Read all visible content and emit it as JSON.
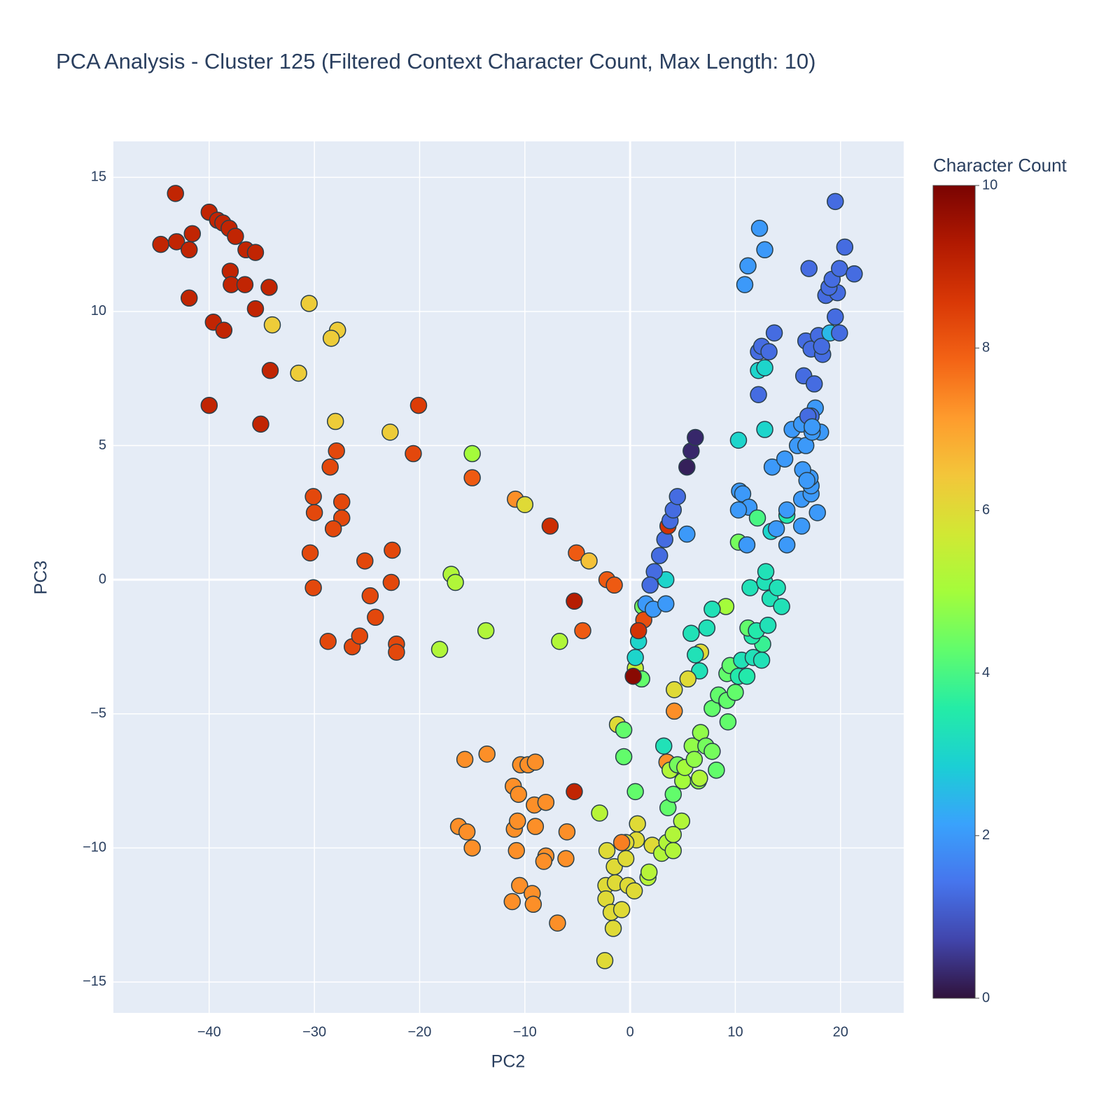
{
  "chart_data": {
    "type": "scatter",
    "title": "PCA Analysis - Cluster 125 (Filtered Context Character Count, Max Length: 10)",
    "x_label": "PC2",
    "y_label": "PC3",
    "xlim": [
      -49.1,
      26.0
    ],
    "ylim": [
      -16.15,
      16.34
    ],
    "xticks": [
      {
        "value": -40,
        "label": "−40"
      },
      {
        "value": -30,
        "label": "−30"
      },
      {
        "value": -20,
        "label": "−20"
      },
      {
        "value": -10,
        "label": "−10"
      },
      0,
      10,
      20
    ],
    "yticks": [
      {
        "value": -15,
        "label": "−15"
      },
      {
        "value": -10,
        "label": "−10"
      },
      {
        "value": -5,
        "label": "−5"
      },
      0,
      5,
      10,
      15
    ],
    "grid": true,
    "background": "#e5ecf6",
    "marker_line_color": "#2a3f4a",
    "colorbar": {
      "title": "Character Count",
      "range": [
        0,
        10
      ],
      "ticks": [
        0,
        2,
        4,
        6,
        8,
        10
      ],
      "colorscale": "Turbo"
    },
    "series": [
      {
        "x": [
          -44.6,
          -43.2,
          -43.1,
          -41.9,
          -41.6,
          -41.9,
          -40,
          -39.2,
          -38.7,
          -38.1,
          -37.5,
          -36.5,
          -35.6,
          -38,
          -37.9,
          -36.6,
          -34.3,
          -35.6,
          -39.6,
          -38.6,
          -34.2,
          -40,
          -35.1,
          -34,
          -30.5,
          -27.8,
          -28.4,
          -31.5,
          -28,
          -22.8,
          -20.1,
          -20.6,
          -27.9,
          -28.5,
          -30.1,
          -27.4,
          -30,
          -27.4,
          -28.2,
          -30.4,
          -25.2,
          -22.6,
          -30.1,
          -22.7,
          -24.7,
          -24.2,
          -28.7,
          -26.4,
          -25.7,
          -22.2,
          -22.2,
          -15,
          -15,
          -10.9,
          -10,
          -7.6,
          -5.1,
          -3.9,
          -2.2,
          -1.5,
          -5.3,
          -4.5,
          -6.7,
          -17,
          -16.6,
          -13.7,
          -18.1,
          -15.7,
          -13.6,
          -10.4,
          -9.7,
          -9,
          -11.1,
          -10.6,
          -9.1,
          -8,
          -5.3,
          -16.3,
          -15.5,
          -15,
          -11,
          -10.7,
          -9,
          -6,
          -10.8,
          -8,
          -8.2,
          -6.1,
          -10.5,
          -9.3,
          -11.2,
          -9.2,
          -6.9,
          -2.9,
          -1.2,
          -2.2,
          -1.5,
          -0.4,
          0.6,
          0.7,
          -0.4,
          -0.8,
          2.1,
          -2.3,
          -1.4,
          -0.2,
          0.4,
          -2.3,
          -1.8,
          -0.8,
          -1.6,
          -2.4,
          1.7,
          1.8,
          -0.6,
          -0.6,
          0.5,
          0.5,
          1.1,
          3.6,
          4.1,
          4.9,
          3,
          3.5,
          4.1,
          4.1,
          3.2,
          3.5,
          4.2,
          4.2,
          3.8,
          4.5,
          5,
          5.2,
          5.9,
          6.1,
          6.7,
          6.5,
          6.6,
          7.2,
          7.8,
          8.2,
          7.8,
          8.4,
          9.2,
          9.3,
          10,
          9.2,
          9.5,
          10.3,
          11.1,
          10.6,
          11.7,
          12.5,
          12.6,
          11.6,
          11.2,
          12,
          13.1,
          11.4,
          12.8,
          12.9,
          13.3,
          14,
          14.4,
          9.1,
          7.8,
          7.3,
          5.8,
          6.7,
          6.2,
          6.6,
          5.5,
          0.5,
          0.8,
          1.2,
          1.3,
          0.8,
          0.3,
          1.5,
          2.2,
          3.4,
          3.4,
          2.3,
          1.9,
          2.8,
          3.3,
          3.6,
          3.8,
          4.1,
          4.5,
          5.4,
          5.4,
          5.8,
          6.2,
          10.3,
          12.8,
          10.4,
          10.7,
          11.3,
          10.3,
          12.1,
          10.3,
          11.1,
          13.4,
          13.9,
          14.9,
          14.9,
          14.9,
          16.3,
          17.8,
          16.3,
          17.2,
          17.2,
          17.1,
          13.5,
          14.7,
          16.4,
          16.8,
          15.9,
          16.7,
          15.4,
          16.3,
          18.1,
          17.3,
          17.6,
          17.2,
          16.9,
          17.3,
          16.5,
          17.5,
          12.2,
          12.8,
          12.2,
          12.2,
          12.5,
          13.2,
          13.7,
          16.7,
          17.2,
          17.9,
          18.3,
          18.2,
          19.5,
          19,
          19.9,
          18.6,
          19.7,
          18.9,
          19.2,
          19.9,
          17,
          20.4,
          21.3,
          10.9,
          11.2,
          12.3,
          12.8,
          19.5
        ],
        "y": [
          12.5,
          14.4,
          12.6,
          12.3,
          12.9,
          10.5,
          13.7,
          13.4,
          13.3,
          13.1,
          12.8,
          12.3,
          12.2,
          11.5,
          11,
          11,
          10.9,
          10.1,
          9.6,
          9.3,
          7.8,
          6.5,
          5.8,
          9.5,
          10.3,
          9.3,
          9,
          7.7,
          5.9,
          5.5,
          6.5,
          4.7,
          4.8,
          4.2,
          3.1,
          2.9,
          2.5,
          2.3,
          1.9,
          1,
          0.7,
          1.1,
          -0.3,
          -0.1,
          -0.6,
          -1.4,
          -2.3,
          -2.5,
          -2.1,
          -2.4,
          -2.7,
          4.7,
          3.8,
          3,
          2.8,
          2,
          1,
          0.7,
          0,
          -0.2,
          -0.8,
          -1.9,
          -2.3,
          0.2,
          -0.1,
          -1.9,
          -2.6,
          -6.7,
          -6.5,
          -6.9,
          -6.9,
          -6.8,
          -7.7,
          -8,
          -8.4,
          -8.3,
          -7.9,
          -9.2,
          -9.4,
          -10,
          -9.3,
          -9,
          -9.2,
          -9.4,
          -10.1,
          -10.3,
          -10.5,
          -10.4,
          -11.4,
          -11.7,
          -12,
          -12.1,
          -12.8,
          -8.7,
          -5.4,
          -10.1,
          -10.7,
          -10.4,
          -9.7,
          -9.1,
          -9.8,
          -9.8,
          -9.9,
          -11.4,
          -11.3,
          -11.4,
          -11.6,
          -11.9,
          -12.4,
          -12.3,
          -13,
          -14.2,
          -11.1,
          -10.9,
          -5.6,
          -6.6,
          -7.9,
          -3.3,
          -3.7,
          -8.5,
          -8,
          -9,
          -10.2,
          -9.8,
          -9.5,
          -10.1,
          -6.2,
          -6.8,
          -4.1,
          -4.9,
          -7.1,
          -6.9,
          -7.5,
          -7,
          -6.2,
          -6.7,
          -5.7,
          -7.5,
          -7.4,
          -6.2,
          -6.4,
          -7.1,
          -4.8,
          -4.3,
          -4.5,
          -5.3,
          -4.2,
          -3.5,
          -3.2,
          -3.6,
          -3.6,
          -3,
          -2.9,
          -3,
          -2.4,
          -2.1,
          -1.8,
          -1.9,
          -1.7,
          -0.3,
          -0.1,
          0.3,
          -0.7,
          -0.3,
          -1,
          -1,
          -1.1,
          -1.8,
          -2,
          -2.7,
          -2.8,
          -3.4,
          -3.7,
          -2.9,
          -2.3,
          -1,
          -1.5,
          -1.9,
          -3.6,
          -0.9,
          -1.1,
          -0.9,
          0,
          0.3,
          -0.2,
          0.9,
          1.5,
          2,
          2.2,
          2.6,
          3.1,
          1.7,
          4.2,
          4.8,
          5.3,
          5.2,
          5.6,
          3.3,
          3.2,
          2.7,
          2.6,
          2.3,
          1.4,
          1.3,
          1.8,
          1.9,
          2.4,
          2.6,
          1.3,
          2,
          2.5,
          3,
          3.2,
          3.5,
          3.8,
          4.2,
          4.5,
          4.1,
          3.7,
          5,
          5,
          5.6,
          5.8,
          5.5,
          5.5,
          6.4,
          6.1,
          6.1,
          5.7,
          7.6,
          7.3,
          7.8,
          7.9,
          6.9,
          8.5,
          8.7,
          8.5,
          9.2,
          8.9,
          8.6,
          9.1,
          8.4,
          8.7,
          9.8,
          9.2,
          9.2,
          10.6,
          10.7,
          10.9,
          11.2,
          11.6,
          11.6,
          12.4,
          11.4,
          11,
          11.7,
          13.1,
          12.3,
          14.1
        ],
        "color_values": [
          9,
          9,
          9,
          9,
          9,
          9,
          9,
          9,
          9,
          9,
          9,
          9,
          9,
          9,
          9,
          9,
          9,
          9,
          9,
          9,
          9,
          9,
          9,
          6.3,
          6.3,
          6.3,
          6.3,
          6.3,
          6.3,
          6.3,
          8.5,
          8.3,
          8.3,
          8.3,
          8.3,
          8.3,
          8.3,
          8.3,
          8.3,
          8.3,
          8.3,
          8.3,
          8.3,
          8.3,
          8.3,
          8.3,
          8.3,
          8.3,
          8.3,
          8.3,
          8.3,
          5,
          8,
          7.3,
          6,
          8.8,
          8,
          6.5,
          8,
          8,
          9.2,
          8,
          5.2,
          5.2,
          5.2,
          5.2,
          5.2,
          7.3,
          7.3,
          7.3,
          7.3,
          7.3,
          7.3,
          7.3,
          7.3,
          7.3,
          9,
          7.3,
          7.3,
          7.3,
          7.3,
          7.3,
          7.3,
          7.3,
          7.3,
          7.3,
          7.3,
          7.3,
          7.3,
          7.3,
          7.3,
          7.3,
          7.3,
          5.3,
          6,
          6,
          6,
          6,
          6,
          6,
          6,
          7.5,
          6,
          6,
          6,
          6,
          6,
          6,
          6,
          6,
          6,
          6,
          5.3,
          5.3,
          4.3,
          4.3,
          4.3,
          5.5,
          4.3,
          4.3,
          4.3,
          5.2,
          5.2,
          5.2,
          5.2,
          5.2,
          3.3,
          7.3,
          6,
          7.3,
          5.2,
          4.5,
          5,
          5,
          4.8,
          4.8,
          4.8,
          4.8,
          5.2,
          4.5,
          4.5,
          4.3,
          4.3,
          4.3,
          4.3,
          4.3,
          4.3,
          4.3,
          4.3,
          3.5,
          3.5,
          3.3,
          3.3,
          3.3,
          3.8,
          3.5,
          4.3,
          3.5,
          3.3,
          3.3,
          3.3,
          3.3,
          3.3,
          3.3,
          3.3,
          5,
          3.3,
          3.3,
          3.3,
          6,
          3.3,
          3.3,
          6,
          3,
          3,
          4.5,
          8.2,
          8.7,
          9.8,
          2,
          2,
          2,
          3,
          1.3,
          1.3,
          1.3,
          1.3,
          8.7,
          1.3,
          1.3,
          1.3,
          2,
          0.2,
          0.3,
          0.3,
          3,
          3,
          2,
          2,
          2,
          2,
          4,
          4.5,
          2,
          3,
          2,
          3.5,
          2,
          2,
          2,
          2,
          2,
          2,
          2,
          2,
          2,
          2,
          2,
          2,
          2,
          2,
          2,
          2,
          2,
          2,
          2,
          1.3,
          1.3,
          2,
          1.3,
          1.3,
          3,
          3,
          1.3,
          1.3,
          1.3,
          1.3,
          1.3,
          1.3,
          1.3,
          1.3,
          1.3,
          1.3,
          1.3,
          2.5,
          1.3,
          1.3,
          1.3,
          1.3,
          1.3,
          1.3,
          1.3,
          1.3,
          1.3,
          2,
          2,
          2,
          2,
          1.3
        ]
      }
    ]
  }
}
